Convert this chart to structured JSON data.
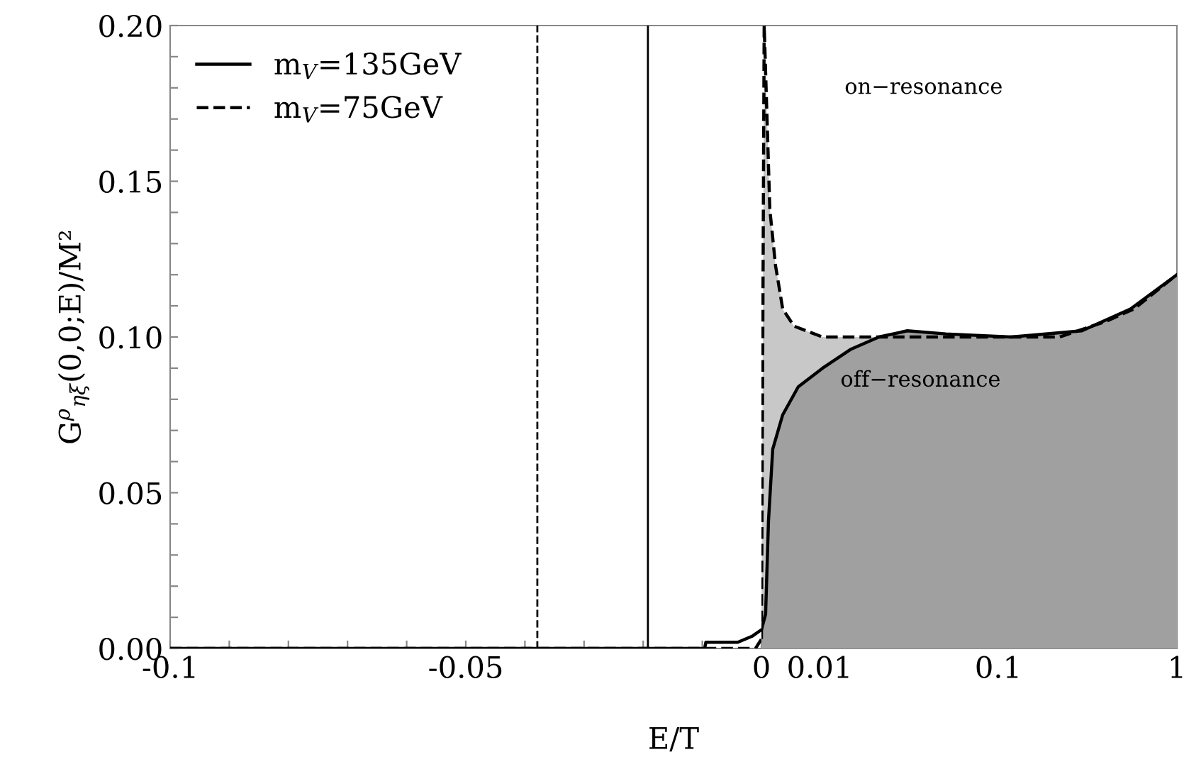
{
  "chart_data": [
    {
      "type": "area",
      "ylabel": "G$^{ρ}$$_{ηξ}$(0,0;E)/M²",
      "xlim": [
        -0.1,
        0
      ],
      "ylim": [
        0,
        0.2
      ],
      "xticks": [
        -0.1,
        {
          "value": -0.09,
          "label": null
        },
        {
          "value": -0.08,
          "label": null
        },
        {
          "value": -0.07,
          "label": null
        },
        {
          "value": -0.06,
          "label": null
        },
        -0.05,
        {
          "value": -0.04,
          "label": null
        },
        {
          "value": -0.03,
          "label": null
        },
        {
          "value": -0.02,
          "label": null
        },
        {
          "value": -0.01,
          "label": null
        },
        0
      ],
      "yticks": [
        {
          "value": 0,
          "label": "0.00"
        },
        {
          "value": 0.01,
          "label": null
        },
        {
          "value": 0.02,
          "label": null
        },
        {
          "value": 0.03,
          "label": null
        },
        {
          "value": 0.04,
          "label": null
        },
        {
          "value": 0.05,
          "label": "0.05"
        },
        {
          "value": 0.06,
          "label": null
        },
        {
          "value": 0.07,
          "label": null
        },
        {
          "value": 0.08,
          "label": null
        },
        {
          "value": 0.09,
          "label": null
        },
        {
          "value": 0.1,
          "label": "0.10"
        },
        {
          "value": 0.11,
          "label": null
        },
        {
          "value": 0.12,
          "label": null
        },
        {
          "value": 0.13,
          "label": null
        },
        {
          "value": 0.14,
          "label": null
        },
        {
          "value": 0.15,
          "label": "0.15"
        },
        {
          "value": 0.16,
          "label": null
        },
        {
          "value": 0.17,
          "label": null
        },
        {
          "value": 0.18,
          "label": null
        },
        {
          "value": 0.19,
          "label": null
        },
        {
          "value": 0.2,
          "label": "0.20"
        }
      ],
      "legend": "top left",
      "series": [
        {
          "name": "m$_{V}$=135GeV",
          "type": "line",
          "color": "#000000",
          "line_style": "solid",
          "x": [
            -0.1,
            -0.0096,
            -0.0094,
            -0.004,
            -0.0015,
            0
          ],
          "values": [
            0,
            0,
            0.002,
            0.002,
            0.004,
            0.006
          ]
        },
        {
          "name": "m$_{V}$=75GeV",
          "type": "line",
          "color": "#000000",
          "line_style": "dashed",
          "x": [
            -0.1,
            -0.001,
            0
          ],
          "values": [
            0,
            0,
            0.003
          ]
        }
      ],
      "ref_lines": [
        {
          "axis": "x",
          "value": -0.0379,
          "color": "#000000",
          "line_style": "dashed"
        },
        {
          "axis": "x",
          "value": -0.0192,
          "color": "#000000",
          "line_style": "solid"
        }
      ]
    },
    {
      "type": "area",
      "xlabel": "E/T",
      "log": "x",
      "tick_labels": "x",
      "xlim": [
        0.00473,
        1
      ],
      "ylim": [
        0,
        0.2
      ],
      "xticks": [
        0.01,
        {
          "value": 0.02,
          "label": null
        },
        {
          "value": 0.03,
          "label": null
        },
        {
          "value": 0.04,
          "label": null
        },
        {
          "value": 0.05,
          "label": null
        },
        {
          "value": 0.06,
          "label": null
        },
        {
          "value": 0.07,
          "label": null
        },
        {
          "value": 0.08,
          "label": null
        },
        {
          "value": 0.09,
          "label": null
        },
        0.1,
        {
          "value": 0.2,
          "label": null
        },
        {
          "value": 0.3,
          "label": null
        },
        {
          "value": 0.4,
          "label": null
        },
        {
          "value": 0.5,
          "label": null
        },
        {
          "value": 0.6,
          "label": null
        },
        {
          "value": 0.7,
          "label": null
        },
        {
          "value": 0.8,
          "label": null
        },
        {
          "value": 0.9,
          "label": null
        },
        1
      ],
      "series": [
        {
          "color": "#a0a0a0",
          "line_style": "solid",
          "x": [
            0.00473,
            0.00499,
            0.00518,
            0.00547,
            0.00622,
            0.0076,
            0.0104,
            0.0149,
            0.0215,
            0.031,
            0.0509,
            0.118,
            0.294,
            0.55,
            1
          ],
          "values": [
            0.006,
            0.011,
            0.041,
            0.064,
            0.075,
            0.084,
            0.09,
            0.096,
            0.1,
            0.102,
            0.101,
            0.1,
            0.102,
            0.109,
            0.12
          ]
        },
        {
          "color": "#c8c8c8",
          "line_style": "dashed",
          "x": [
            0.00473,
            0.0049,
            0.00527,
            0.00567,
            0.00622,
            0.0072,
            0.0104,
            0.0372,
            0.22,
            0.4,
            0.575,
            1
          ],
          "values": [
            0.003,
            0.2,
            0.141,
            0.123,
            0.109,
            0.1035,
            0.1,
            0.1,
            0.1,
            0.105,
            0.109,
            0.12
          ]
        }
      ],
      "annotations": [
        "on−resonance",
        "off−resonance"
      ]
    }
  ]
}
